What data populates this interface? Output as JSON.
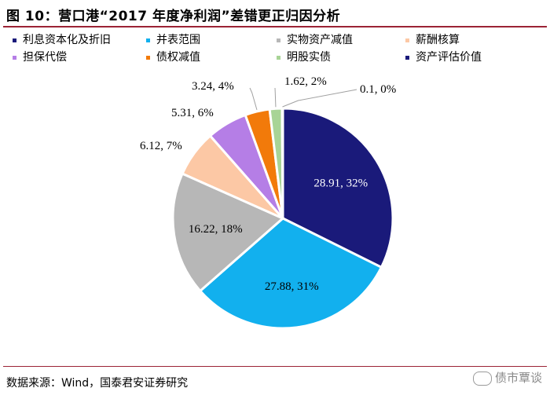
{
  "header": {
    "title": "图 10：营口港“2017 年度净利润”差错更正归因分析"
  },
  "chart_data": {
    "type": "pie",
    "title": "",
    "legend_position": "top",
    "slices": [
      {
        "name": "利息资本化及折旧",
        "value": 28.91,
        "percent": 32,
        "label": "28.91, 32%",
        "color": "#1a1a7a"
      },
      {
        "name": "并表范围",
        "value": 27.88,
        "percent": 31,
        "label": "27.88, 31%",
        "color": "#12b0ee"
      },
      {
        "name": "实物资产减值",
        "value": 16.22,
        "percent": 18,
        "label": "16.22, 18%",
        "color": "#b7b7b7"
      },
      {
        "name": "薪酬核算",
        "value": 6.12,
        "percent": 7,
        "label": "6.12, 7%",
        "color": "#fcc8a5"
      },
      {
        "name": "担保代偿",
        "value": 5.31,
        "percent": 6,
        "label": "5.31, 6%",
        "color": "#b57ee6"
      },
      {
        "name": "债权减值",
        "value": 3.24,
        "percent": 4,
        "label": "3.24, 4%",
        "color": "#f27a0a"
      },
      {
        "name": "明股实债",
        "value": 1.62,
        "percent": 2,
        "label": "1.62, 2%",
        "color": "#a8d496"
      },
      {
        "name": "资产评估价值",
        "value": 0.1,
        "percent": 0,
        "label": "0.1, 0%",
        "color": "#1a1a7a"
      }
    ]
  },
  "footer": {
    "source": "数据来源：Wind，国泰君安证券研究",
    "watermark": "债市覃谈"
  }
}
